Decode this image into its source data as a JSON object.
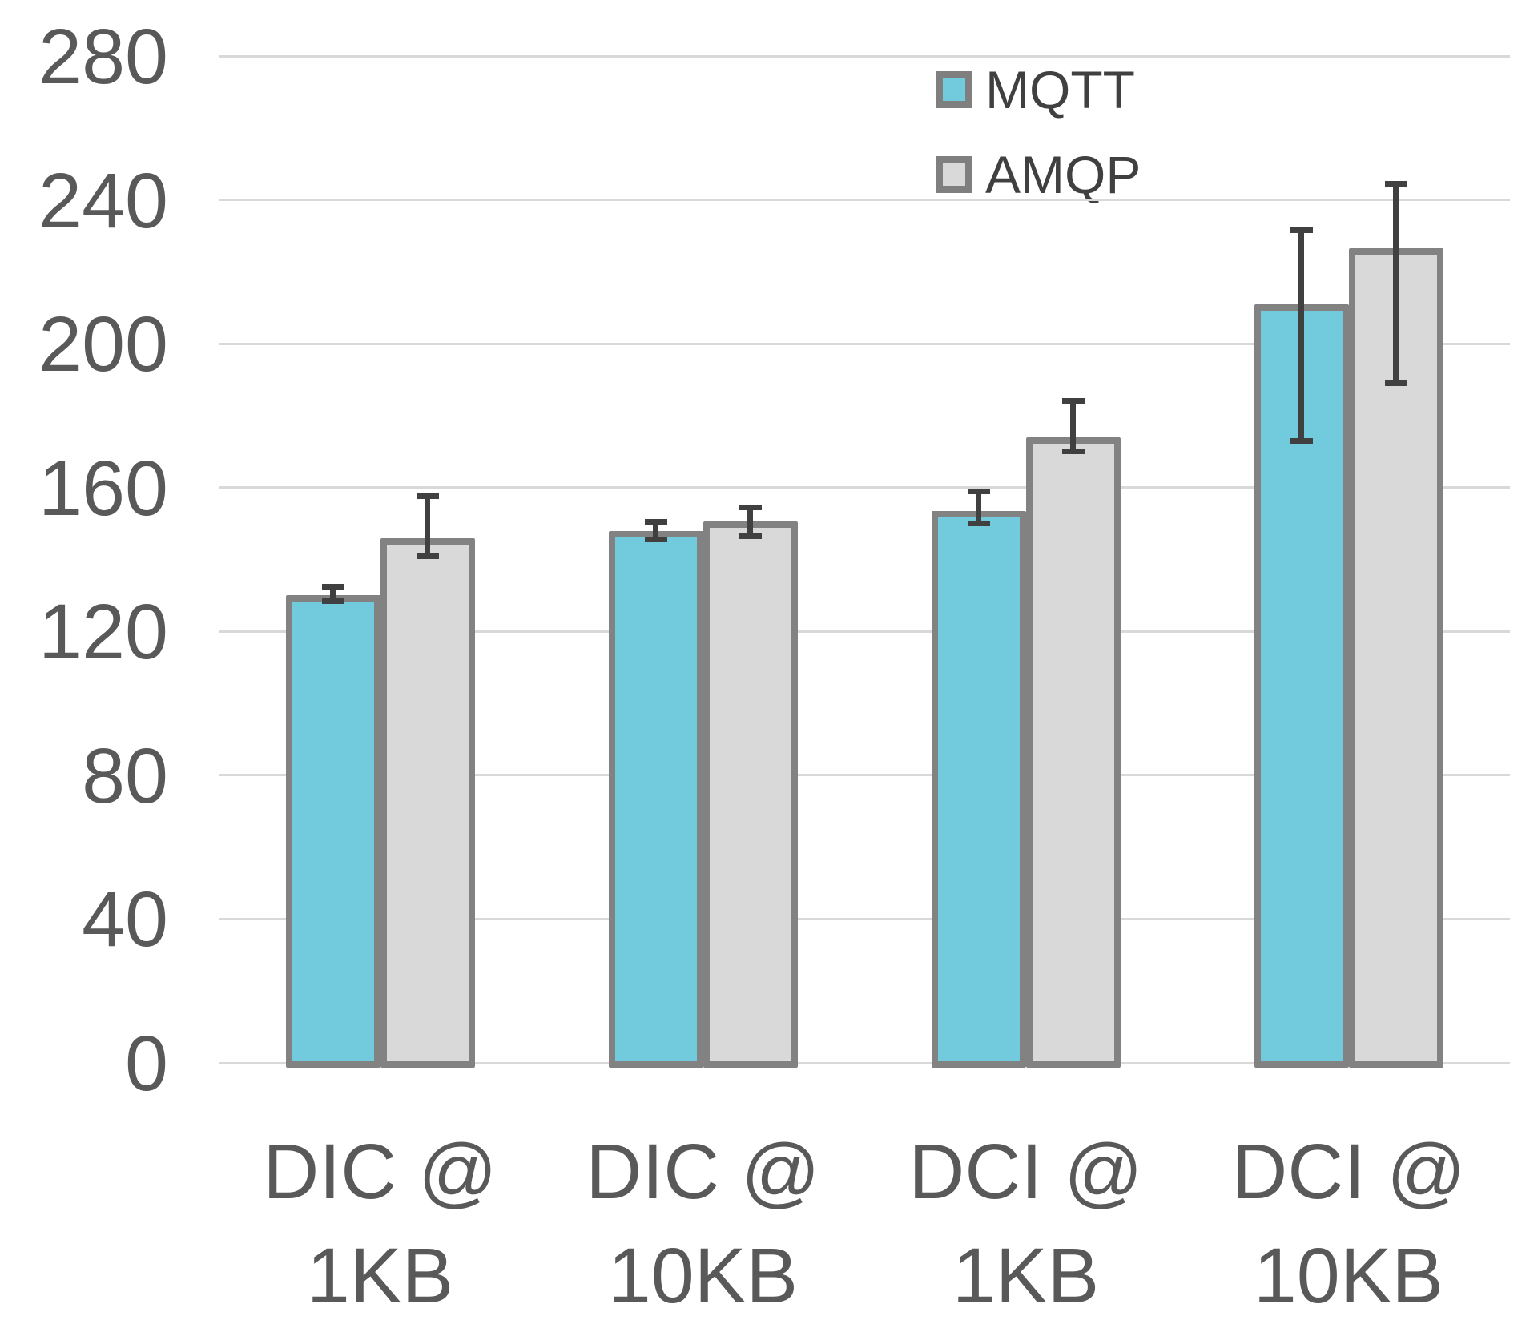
{
  "chart_data": {
    "type": "bar",
    "title": "",
    "xlabel": "",
    "ylabel": "",
    "categories": [
      "DIC @ 1KB",
      "DIC @ 10KB",
      "DCI @ 1KB",
      "DCI @ 10KB"
    ],
    "categories_lines": [
      [
        "DIC @",
        "1KB"
      ],
      [
        "DIC @",
        "10KB"
      ],
      [
        "DCI @",
        "1KB"
      ],
      [
        "DCI @",
        "10KB"
      ]
    ],
    "series": [
      {
        "name": "MQTT",
        "color": "#72cbdd",
        "values": [
          130,
          148,
          153.5,
          211
        ],
        "error_low": [
          128.5,
          145.5,
          150,
          173
        ],
        "error_high": [
          132.5,
          150.5,
          159,
          231.5
        ]
      },
      {
        "name": "AMQP",
        "color": "#d9d9d9",
        "values": [
          146,
          150.5,
          174,
          226.5
        ],
        "error_low": [
          141,
          146.5,
          170,
          189
        ],
        "error_high": [
          157.5,
          154.5,
          184,
          244.5
        ]
      }
    ],
    "ylim": [
      0,
      280
    ],
    "yticks": [
      0,
      40,
      80,
      120,
      160,
      200,
      240,
      280
    ],
    "grid": true,
    "legend_position": "top-right"
  },
  "colors": {
    "bar_border": "#828282",
    "error_bar": "#404040",
    "gridline": "#d9d9d9",
    "tick_text": "#595959",
    "legend_text": "#404040",
    "background": "#ffffff"
  }
}
